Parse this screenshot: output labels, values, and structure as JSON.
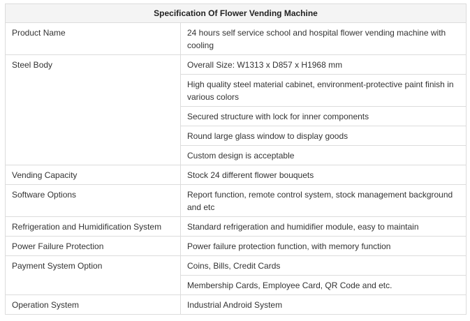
{
  "title": "Specification Of Flower Vending Machine",
  "rows": [
    {
      "label": "Product Name",
      "values": [
        "24 hours self service school and hospital flower vending machine with cooling"
      ]
    },
    {
      "label": "Steel Body",
      "values": [
        "Overall Size: W1313 x D857 x H1968 mm",
        "High quality steel material cabinet, environment-protective paint finish in various colors",
        "Secured structure with lock for inner components",
        "Round large glass window to display goods",
        "Custom design is acceptable"
      ]
    },
    {
      "label": "Vending Capacity",
      "values": [
        "Stock 24 different flower bouquets"
      ]
    },
    {
      "label": "Software Options",
      "values": [
        "Report function, remote control system, stock management background and etc"
      ]
    },
    {
      "label": "Refrigeration and Humidification System",
      "values": [
        "Standard refrigeration and humidifier module, easy to maintain"
      ]
    },
    {
      "label": "Power Failure Protection",
      "values": [
        "Power failure protection function, with memory function"
      ]
    },
    {
      "label": "Payment System Option",
      "values": [
        "Coins, Bills, Credit Cards",
        "Membership Cards, Employee Card, QR Code and etc."
      ]
    },
    {
      "label": "Operation System",
      "values": [
        "Industrial Android System"
      ]
    }
  ]
}
